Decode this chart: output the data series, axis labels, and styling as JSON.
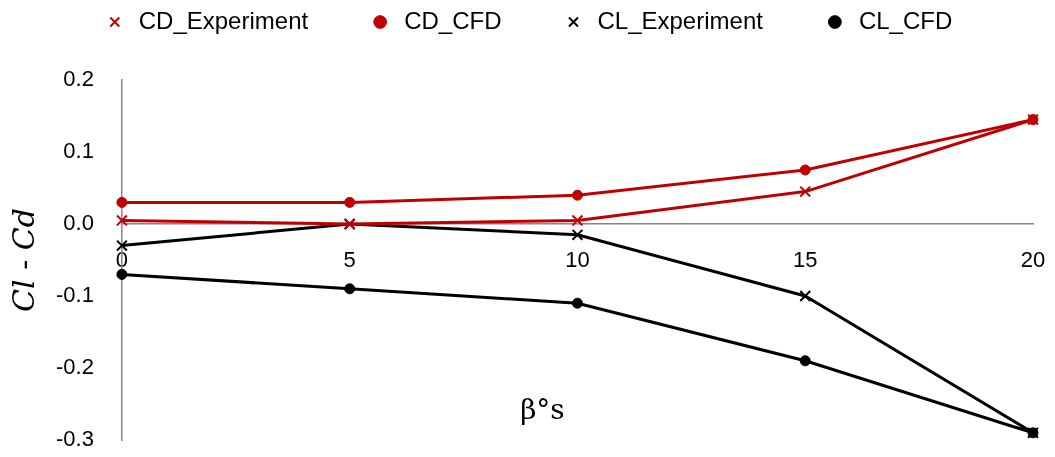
{
  "chart_data": {
    "type": "line",
    "xlabel": "β°s",
    "ylabel": "Cl - Cd",
    "x": [
      0,
      5,
      10,
      15,
      20
    ],
    "series": [
      {
        "name": "CD_Experiment",
        "color": "#c00000",
        "marker": "cross",
        "values": [
          0.005,
          0,
          0.005,
          0.045,
          0.145
        ]
      },
      {
        "name": "CD_CFD",
        "color": "#c00000",
        "marker": "circle",
        "values": [
          0.03,
          0.03,
          0.04,
          0.075,
          0.145
        ]
      },
      {
        "name": "CL_Experiment",
        "color": "#000000",
        "marker": "cross",
        "values": [
          -0.03,
          0,
          -0.015,
          -0.1,
          -0.29
        ]
      },
      {
        "name": "CL_CFD",
        "color": "#000000",
        "marker": "circle",
        "values": [
          -0.07,
          -0.09,
          -0.11,
          -0.19,
          -0.29
        ]
      }
    ],
    "xlim": [
      0,
      20
    ],
    "xticks": [
      0,
      5,
      10,
      15,
      20
    ],
    "ylim": [
      -0.3,
      0.2
    ],
    "yticks": [
      0.2,
      0.1,
      {
        "value": 0,
        "label": "0.0"
      },
      -0.1,
      -0.2,
      -0.3
    ],
    "grid": false,
    "legend": "top",
    "line_style": "solid"
  }
}
